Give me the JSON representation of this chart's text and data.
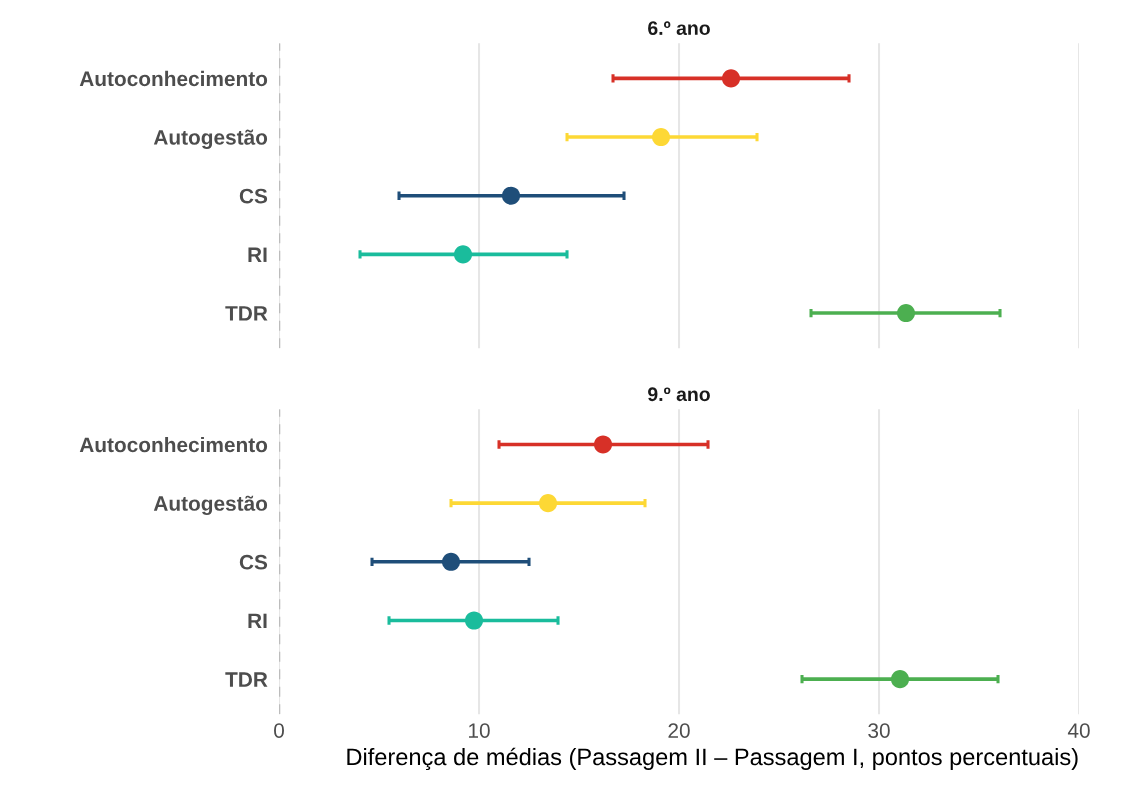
{
  "chart_data": [
    {
      "type": "scatter",
      "orientation": "horizontal",
      "title": "6.º ano",
      "categories": [
        "Autoconhecimento",
        "Autogestão",
        "CS",
        "RI",
        "TDR"
      ],
      "values": [
        22.6,
        19.1,
        11.6,
        9.2,
        31.35
      ],
      "errors": [
        [
          16.7,
          28.5
        ],
        [
          14.4,
          23.9
        ],
        [
          6.0,
          17.25
        ],
        [
          4.05,
          14.4
        ],
        [
          26.6,
          36.05
        ]
      ],
      "colors": [
        "#d73027",
        "#fdd835",
        "#1f4e79",
        "#1abc9c",
        "#4caf50"
      ],
      "xlim": [
        0,
        40
      ],
      "xticks": [
        0,
        10,
        20,
        30,
        40
      ],
      "grid": "x",
      "tick_labels": "y",
      "marker": "circle",
      "ref_lines": [
        {
          "axis": "x",
          "value": 0,
          "color": "#bbbbbb",
          "line_style": "dashed"
        }
      ]
    },
    {
      "type": "scatter",
      "orientation": "horizontal",
      "title": "9.º ano",
      "xlabel": "Diferença de médias (Passagem II – Passagem I, pontos percentuais)",
      "categories": [
        "Autoconhecimento",
        "Autogestão",
        "CS",
        "RI",
        "TDR"
      ],
      "values": [
        16.2,
        13.45,
        8.6,
        9.75,
        31.05
      ],
      "errors": [
        [
          11.0,
          21.45
        ],
        [
          8.6,
          18.3
        ],
        [
          4.65,
          12.5
        ],
        [
          5.5,
          13.95
        ],
        [
          26.15,
          35.95
        ]
      ],
      "colors": [
        "#d73027",
        "#fdd835",
        "#1f4e79",
        "#1abc9c",
        "#4caf50"
      ],
      "xlim": [
        0,
        40
      ],
      "xticks": [
        0,
        10,
        20,
        30,
        40
      ],
      "grid": "x",
      "marker": "circle",
      "ref_lines": [
        {
          "axis": "x",
          "value": 0,
          "color": "#bbbbbb",
          "line_style": "dashed"
        }
      ]
    }
  ]
}
